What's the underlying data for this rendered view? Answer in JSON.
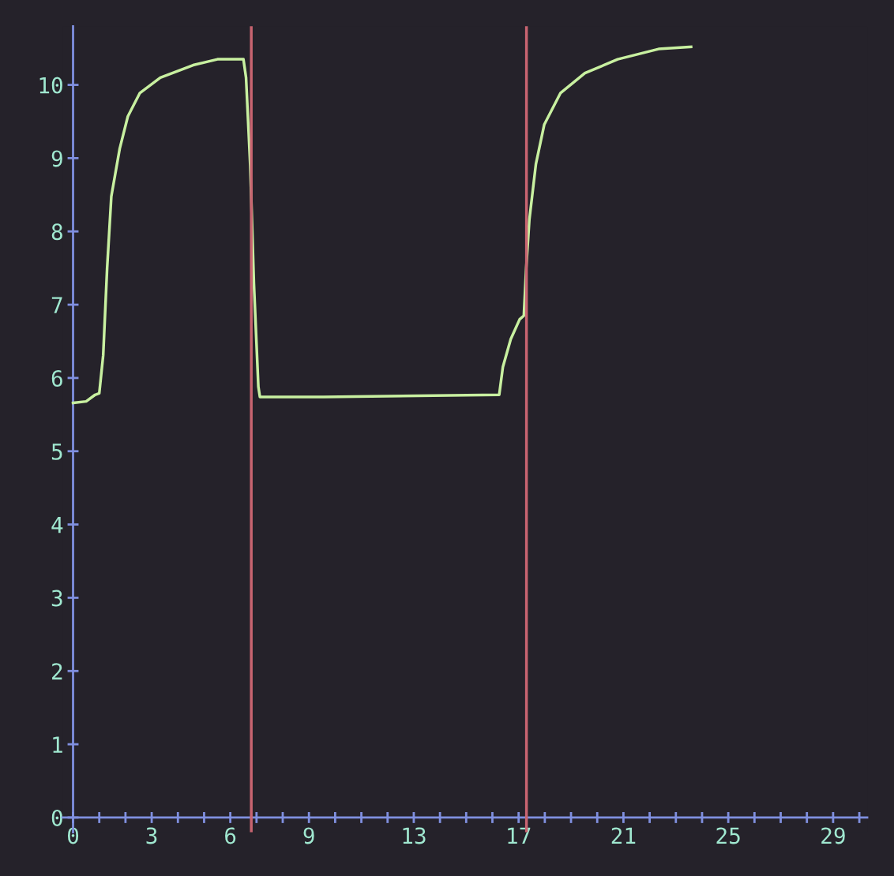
{
  "chart_data": {
    "type": "line",
    "x": [
      0,
      0.5,
      0.84,
      1,
      1.15,
      1.3,
      1.46,
      1.78,
      2.09,
      2.55,
      3.33,
      4.58,
      5.51,
      6.5,
      6.6,
      6.76,
      6.9,
      7.07,
      7.13,
      9.56,
      16.26,
      16.4,
      16.7,
      17.04,
      17.2,
      17.29,
      17.41,
      17.66,
      17.98,
      18.6,
      19.53,
      20.78,
      22.34,
      23.58
    ],
    "series": [
      {
        "color": "#c8f0a0",
        "values": [
          5.66,
          5.68,
          5.77,
          5.79,
          6.31,
          7.5,
          8.48,
          9.13,
          9.57,
          9.89,
          10.1,
          10.27,
          10.35,
          10.35,
          10.1,
          8.9,
          7.29,
          5.88,
          5.74,
          5.74,
          5.77,
          6.15,
          6.53,
          6.8,
          6.85,
          7.5,
          8.16,
          8.92,
          9.46,
          9.89,
          10.16,
          10.35,
          10.49,
          10.52
        ]
      }
    ],
    "xlim": [
      -0.4,
      30.3
    ],
    "ylim": [
      -0.2,
      10.8
    ],
    "xticks": [
      0,
      {
        "value": 1,
        "label": null
      },
      {
        "value": 2,
        "label": null
      },
      3,
      {
        "value": 4,
        "label": null
      },
      {
        "value": 5,
        "label": null
      },
      6,
      {
        "value": 7,
        "label": null
      },
      {
        "value": 8,
        "label": null
      },
      9,
      {
        "value": 10,
        "label": null
      },
      {
        "value": 11,
        "label": null
      },
      {
        "value": 12,
        "label": null
      },
      13,
      {
        "value": 14,
        "label": null
      },
      {
        "value": 15,
        "label": null
      },
      {
        "value": 16,
        "label": null
      },
      17,
      {
        "value": 18,
        "label": null
      },
      {
        "value": 19,
        "label": null
      },
      {
        "value": 20,
        "label": null
      },
      21,
      {
        "value": 22,
        "label": null
      },
      {
        "value": 23,
        "label": null
      },
      {
        "value": 24,
        "label": null
      },
      25,
      {
        "value": 26,
        "label": null
      },
      {
        "value": 27,
        "label": null
      },
      {
        "value": 28,
        "label": null
      },
      29,
      {
        "value": 30,
        "label": null
      }
    ],
    "yticks": [
      0,
      1,
      2,
      3,
      4,
      5,
      6,
      7,
      8,
      9,
      10
    ],
    "ref_lines": [
      {
        "axis": "x",
        "value": 6.8,
        "color": "#c86470"
      },
      {
        "axis": "x",
        "value": 17.3,
        "color": "#c86470"
      }
    ],
    "grid": false,
    "legend": false,
    "marker": "none",
    "line_style": "solid"
  }
}
